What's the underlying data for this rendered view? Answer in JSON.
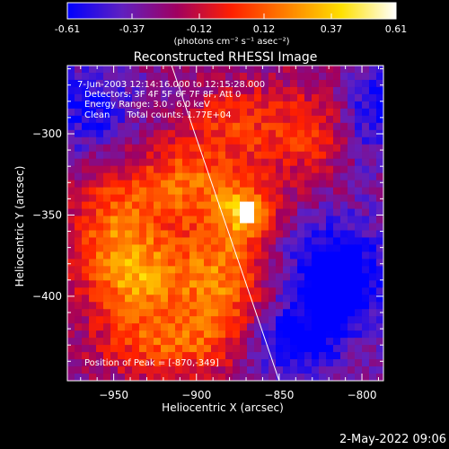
{
  "colorbar": {
    "ticks": [
      "-0.61",
      "-0.37",
      "-0.12",
      "0.12",
      "0.37",
      "0.61"
    ],
    "units_label": "(photons cm⁻² s⁻¹ asec⁻²)"
  },
  "footer": {
    "timestamp": "2-May-2022 09:06"
  },
  "chart_data": {
    "type": "heatmap",
    "title": "Reconstructed RHESSI Image",
    "xlabel": "Heliocentric X (arcsec)",
    "ylabel": "Heliocentric Y (arcsec)",
    "xlim": [
      -978,
      -787
    ],
    "ylim": [
      -452,
      -258
    ],
    "x_ticks": [
      -950,
      -900,
      -850,
      -800
    ],
    "x_tick_labels": [
      "−950",
      "−900",
      "−850",
      "−800"
    ],
    "y_ticks": [
      -300,
      -350,
      -400
    ],
    "y_tick_labels": [
      "−300",
      "−350",
      "−400"
    ],
    "color_range": [
      -0.61,
      0.61
    ],
    "colormap": "blue-purple-red-yellow-white",
    "colormap_stops": [
      "#0000ff",
      "#6020c0",
      "#a00060",
      "#ff2000",
      "#ff8000",
      "#ffe000",
      "#ffffff"
    ],
    "annotations": [
      "7-Jun-2003 12:14:16.000 to 12:15:28.000",
      "Detectors: 3F 4F 5F 6F 7F 8F, Att 0",
      "Energy Range: 3.0 - 6.0 keV",
      "Clean      Total counts: 1.77E+04",
      "Position of Peak = [-870,-349]"
    ],
    "peak": {
      "x": -870,
      "y": -349,
      "value": 0.61
    },
    "limb_line": [
      [
        -915,
        -258
      ],
      [
        -850,
        -452
      ]
    ],
    "emission_regions": [
      {
        "x": -870,
        "y": -349,
        "sigma_x": 12,
        "sigma_y": 12,
        "amplitude": 0.45
      },
      {
        "x": -935,
        "y": -390,
        "sigma_x": 22,
        "sigma_y": 20,
        "amplitude": 0.5
      },
      {
        "x": -885,
        "y": -390,
        "sigma_x": 18,
        "sigma_y": 25,
        "amplitude": 0.45
      },
      {
        "x": -905,
        "y": -330,
        "sigma_x": 25,
        "sigma_y": 20,
        "amplitude": 0.4
      },
      {
        "x": -950,
        "y": -355,
        "sigma_x": 18,
        "sigma_y": 22,
        "amplitude": 0.35
      },
      {
        "x": -835,
        "y": -300,
        "sigma_x": 28,
        "sigma_y": 22,
        "amplitude": 0.3
      },
      {
        "x": -915,
        "y": -430,
        "sigma_x": 30,
        "sigma_y": 14,
        "amplitude": 0.35
      },
      {
        "x": -880,
        "y": -290,
        "sigma_x": 15,
        "sigma_y": 15,
        "amplitude": 0.2
      },
      {
        "x": -815,
        "y": -390,
        "sigma_x": 20,
        "sigma_y": 25,
        "amplitude": -0.55
      },
      {
        "x": -845,
        "y": -430,
        "sigma_x": 20,
        "sigma_y": 15,
        "amplitude": -0.35
      },
      {
        "x": -965,
        "y": -285,
        "sigma_x": 20,
        "sigma_y": 20,
        "amplitude": -0.3
      },
      {
        "x": -795,
        "y": -290,
        "sigma_x": 15,
        "sigma_y": 25,
        "amplitude": -0.35
      }
    ],
    "background_level": -0.28
  }
}
